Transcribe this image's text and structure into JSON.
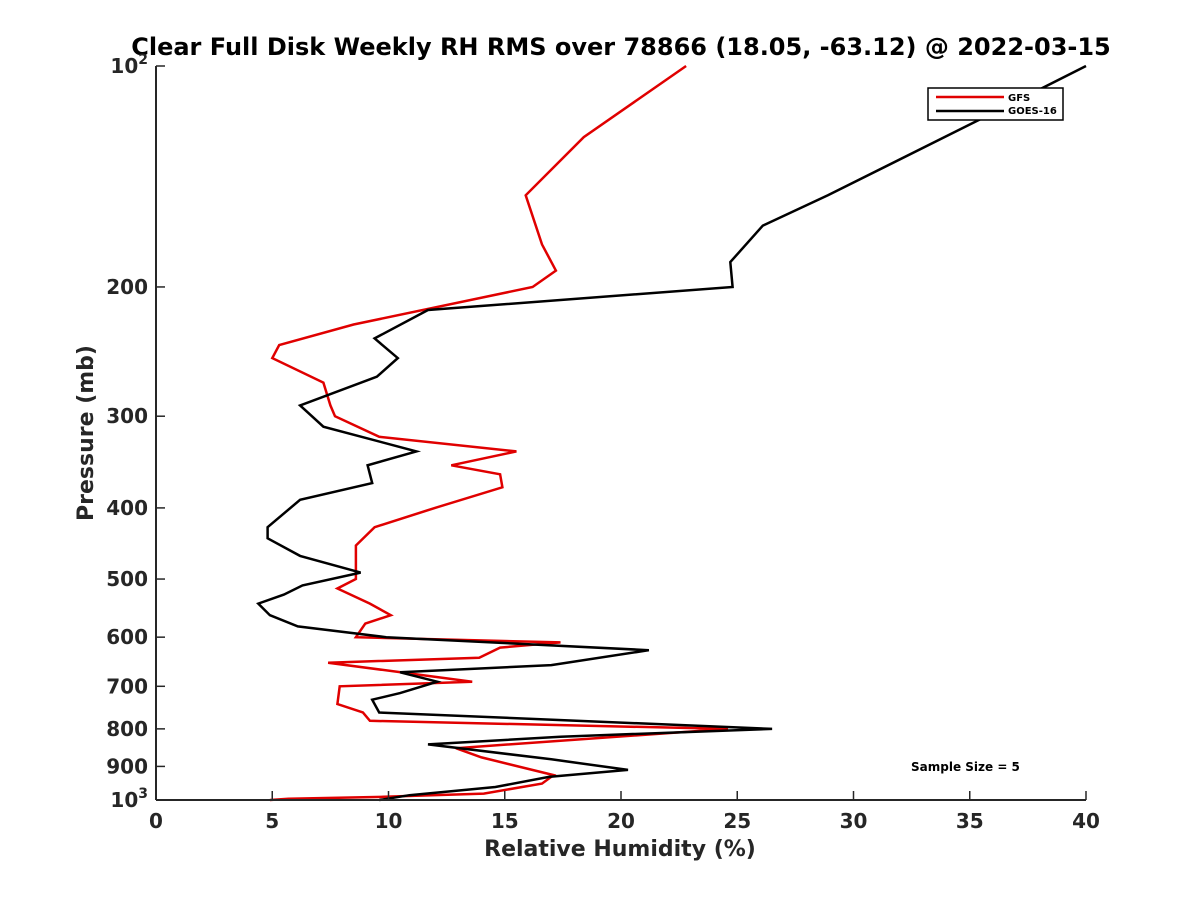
{
  "chart_data": {
    "type": "line",
    "title": "Clear Full Disk Weekly RH RMS over 78866 (18.05, -63.12) @ 2022-03-15",
    "xlabel": "Relative Humidity (%)",
    "ylabel": "Pressure (mb)",
    "xlim": [
      0,
      40
    ],
    "ylim": [
      100,
      1000
    ],
    "y_scale": "log",
    "y_reversed": true,
    "x_ticks": [
      0,
      5,
      10,
      15,
      20,
      25,
      30,
      35,
      40
    ],
    "x_tick_labels": [
      "0",
      "5",
      "10",
      "15",
      "20",
      "25",
      "30",
      "35",
      "40"
    ],
    "y_ticks": [
      100,
      200,
      300,
      400,
      500,
      600,
      700,
      800,
      900,
      1000
    ],
    "y_tick_labels": [
      "10^2",
      "200",
      "300",
      "400",
      "500",
      "600",
      "700",
      "800",
      "900",
      "10^3"
    ],
    "grid": false,
    "legend_position": "top-right",
    "annotation": "Sample Size = 5",
    "series": [
      {
        "name": "GFS",
        "color": "#e00000",
        "points": [
          [
            22.8,
            100
          ],
          [
            18.4,
            125
          ],
          [
            15.9,
            150
          ],
          [
            16.6,
            175
          ],
          [
            17.2,
            190
          ],
          [
            16.2,
            200
          ],
          [
            8.5,
            225
          ],
          [
            5.3,
            240
          ],
          [
            5.0,
            250
          ],
          [
            7.2,
            270
          ],
          [
            7.5,
            290
          ],
          [
            7.7,
            300
          ],
          [
            9.6,
            320
          ],
          [
            15.5,
            335
          ],
          [
            12.7,
            350
          ],
          [
            14.8,
            360
          ],
          [
            14.9,
            375
          ],
          [
            12.0,
            400
          ],
          [
            9.4,
            425
          ],
          [
            8.6,
            450
          ],
          [
            8.6,
            475
          ],
          [
            8.6,
            500
          ],
          [
            7.8,
            515
          ],
          [
            9.2,
            540
          ],
          [
            10.1,
            560
          ],
          [
            9.0,
            575
          ],
          [
            8.6,
            600
          ],
          [
            17.4,
            610
          ],
          [
            14.8,
            620
          ],
          [
            13.9,
            640
          ],
          [
            7.4,
            650
          ],
          [
            13.6,
            690
          ],
          [
            7.9,
            700
          ],
          [
            7.8,
            740
          ],
          [
            8.9,
            760
          ],
          [
            9.2,
            780
          ],
          [
            24.6,
            800
          ],
          [
            12.9,
            850
          ],
          [
            14.0,
            875
          ],
          [
            17.1,
            925
          ],
          [
            16.6,
            950
          ],
          [
            14.1,
            980
          ],
          [
            9.8,
            990
          ],
          [
            5.7,
            996
          ],
          [
            4.9,
            1000
          ]
        ]
      },
      {
        "name": "GOES-16",
        "color": "#000000",
        "points": [
          [
            40.0,
            100
          ],
          [
            36.2,
            115
          ],
          [
            28.9,
            150
          ],
          [
            26.1,
            165
          ],
          [
            24.7,
            185
          ],
          [
            24.8,
            200
          ],
          [
            11.7,
            215
          ],
          [
            9.4,
            235
          ],
          [
            10.4,
            250
          ],
          [
            9.5,
            265
          ],
          [
            6.2,
            290
          ],
          [
            7.2,
            310
          ],
          [
            11.2,
            335
          ],
          [
            9.1,
            350
          ],
          [
            9.3,
            370
          ],
          [
            6.2,
            390
          ],
          [
            4.8,
            425
          ],
          [
            4.8,
            440
          ],
          [
            6.2,
            465
          ],
          [
            8.8,
            490
          ],
          [
            6.3,
            510
          ],
          [
            5.5,
            525
          ],
          [
            4.4,
            540
          ],
          [
            4.9,
            560
          ],
          [
            6.1,
            580
          ],
          [
            9.9,
            600
          ],
          [
            21.2,
            625
          ],
          [
            17.0,
            655
          ],
          [
            10.5,
            670
          ],
          [
            12.1,
            690
          ],
          [
            10.5,
            715
          ],
          [
            9.3,
            730
          ],
          [
            9.6,
            760
          ],
          [
            26.5,
            800
          ],
          [
            17.4,
            820
          ],
          [
            11.7,
            840
          ],
          [
            17.0,
            880
          ],
          [
            20.3,
            910
          ],
          [
            16.9,
            930
          ],
          [
            14.6,
            960
          ],
          [
            10.9,
            985
          ],
          [
            9.6,
            1000
          ]
        ]
      }
    ]
  }
}
